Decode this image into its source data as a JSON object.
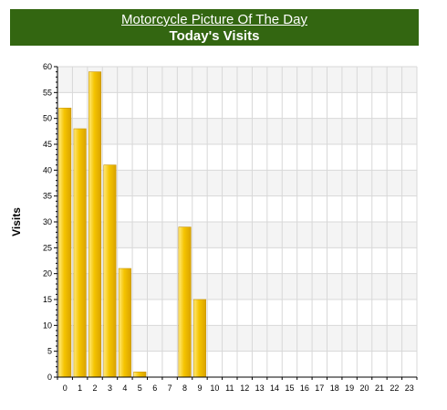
{
  "header": {
    "site_title": "Motorcycle Picture Of The Day",
    "page_title": "Today's Visits"
  },
  "colors": {
    "header_bg": "#336611",
    "bar_light": "#FFE97A",
    "bar_mid": "#F5C400",
    "bar_dark": "#D9A300",
    "plot_bg_alt": "#F4F4F4",
    "grid": "#D8D8D8"
  },
  "chart_data": {
    "type": "bar",
    "title": "Today's Visits",
    "xlabel": "",
    "ylabel": "Visits",
    "categories": [
      "0",
      "1",
      "2",
      "3",
      "4",
      "5",
      "6",
      "7",
      "8",
      "9",
      "10",
      "11",
      "12",
      "13",
      "14",
      "15",
      "16",
      "17",
      "18",
      "19",
      "20",
      "21",
      "22",
      "23"
    ],
    "values": [
      52,
      48,
      59,
      41,
      21,
      1,
      0,
      0,
      29,
      15,
      0,
      0,
      0,
      0,
      0,
      0,
      0,
      0,
      0,
      0,
      0,
      0,
      0,
      0
    ],
    "ylim": [
      0,
      60
    ],
    "yticks": [
      0,
      5,
      10,
      15,
      20,
      25,
      30,
      35,
      40,
      45,
      50,
      55,
      60
    ],
    "grid": true,
    "legend": "none"
  }
}
